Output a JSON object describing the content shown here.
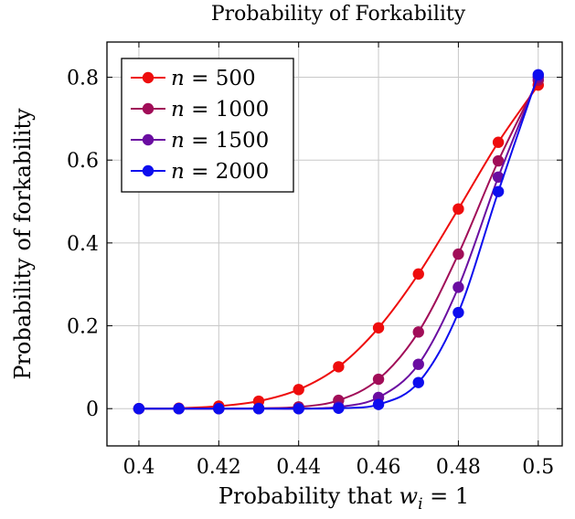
{
  "chart_data": {
    "type": "line",
    "title": "Probability of Forkability",
    "xlabel": {
      "prefix": "Probability that ",
      "var": "w",
      "sub": "i",
      "suffix": " = 1"
    },
    "ylabel": "Probability of forkability",
    "xlim": [
      0.392,
      0.506
    ],
    "ylim": [
      -0.09,
      0.885
    ],
    "grid": true,
    "legend_position": "top-left",
    "x_ticks": [
      0.4,
      0.42,
      0.44,
      0.46,
      0.48,
      0.5
    ],
    "x_tick_labels": [
      "0.4",
      "0.42",
      "0.44",
      "0.46",
      "0.48",
      "0.5"
    ],
    "y_ticks": [
      0,
      0.2,
      0.4,
      0.6,
      0.8
    ],
    "y_tick_labels": [
      "0",
      "0.2",
      "0.4",
      "0.6",
      "0.8"
    ],
    "x": [
      0.4,
      0.41,
      0.42,
      0.43,
      0.44,
      0.45,
      0.46,
      0.47,
      0.48,
      0.49,
      0.5
    ],
    "series": [
      {
        "name": "n = 500",
        "var": "n",
        "value": "500",
        "color": "#ee0d0d",
        "values": [
          0.0,
          0.001,
          0.006,
          0.018,
          0.046,
          0.101,
          0.195,
          0.325,
          0.482,
          0.643,
          0.781
        ]
      },
      {
        "name": "n = 1000",
        "var": "n",
        "value": "1000",
        "color": "#a10d58",
        "values": [
          0.0,
          0.0,
          0.0,
          0.001,
          0.004,
          0.02,
          0.071,
          0.185,
          0.373,
          0.598,
          0.793
        ]
      },
      {
        "name": "n = 1500",
        "var": "n",
        "value": "1500",
        "color": "#6a0da1",
        "values": [
          0.0,
          0.0,
          0.0,
          0.0,
          0.0,
          0.004,
          0.027,
          0.107,
          0.293,
          0.559,
          0.8
        ]
      },
      {
        "name": "n = 2000",
        "var": "n",
        "value": "2000",
        "color": "#0d0dee",
        "values": [
          0.0,
          0.0,
          0.0,
          0.0,
          0.0,
          0.001,
          0.01,
          0.063,
          0.232,
          0.524,
          0.806
        ]
      }
    ]
  }
}
